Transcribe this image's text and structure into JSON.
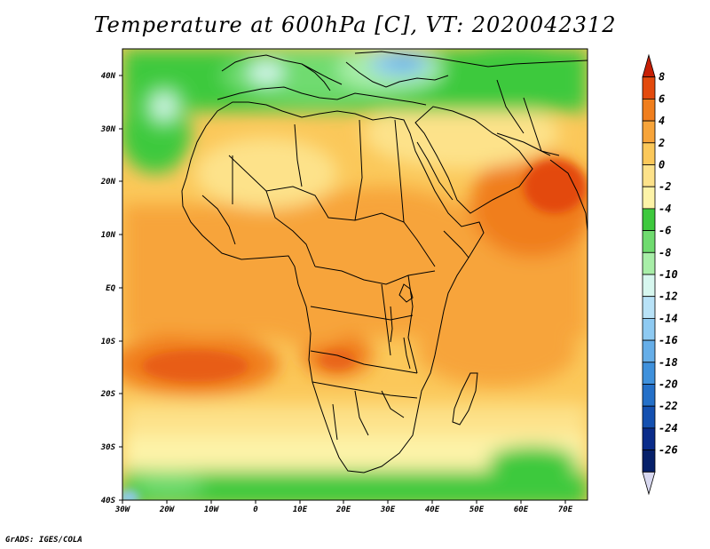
{
  "title": "Temperature at 600hPa [C], VT: 2020042312",
  "credit": "GrADS: IGES/COLA",
  "map": {
    "lon_range": [
      -30,
      75
    ],
    "lat_range": [
      -40,
      45
    ],
    "x_ticks": [
      "30W",
      "20W",
      "10W",
      "0",
      "10E",
      "20E",
      "30E",
      "40E",
      "50E",
      "60E",
      "70E"
    ],
    "y_ticks": [
      "40S",
      "30S",
      "20S",
      "10S",
      "EQ",
      "10N",
      "20N",
      "30N",
      "40N"
    ]
  },
  "colorbar": {
    "labels": [
      "8",
      "6",
      "4",
      "2",
      "0",
      "-2",
      "-4",
      "-6",
      "-8",
      "-10",
      "-12",
      "-14",
      "-16",
      "-18",
      "-20",
      "-22",
      "-24",
      "-26"
    ],
    "colors": [
      "#c61f05",
      "#e34a0d",
      "#f07e1d",
      "#f7a43a",
      "#fbc85a",
      "#fde28a",
      "#fdf3a8",
      "#3ec93e",
      "#6fdb6f",
      "#a8eea8",
      "#d7f7ef",
      "#b8e2f7",
      "#8ecaf2",
      "#66aee8",
      "#3f91dc",
      "#2470c8",
      "#1450b0",
      "#0a2c8a",
      "#06206a",
      "#d8d8f0"
    ]
  }
}
